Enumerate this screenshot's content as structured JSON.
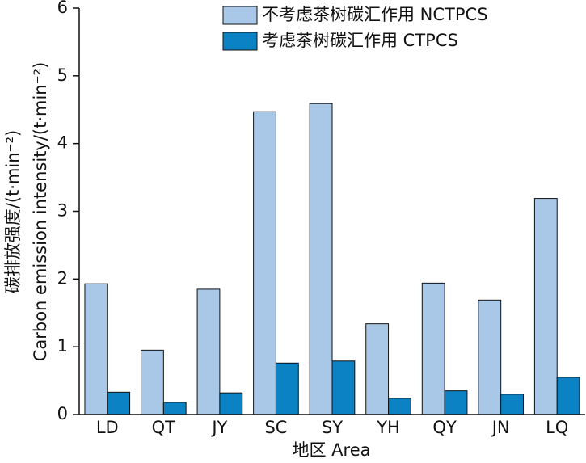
{
  "chart_data": {
    "type": "bar",
    "x_label": "地区 Area",
    "y_label": [
      "碳排放强度/(t·min⁻²)",
      "Carbon emission intensity/(t·min⁻²)"
    ],
    "categories": [
      "LD",
      "QT",
      "JY",
      "SC",
      "SY",
      "YH",
      "QY",
      "JN",
      "LQ"
    ],
    "series": [
      {
        "name": "不考虑茶树碳汇作用 NCTPCS",
        "color": "#a9c8e8",
        "values": [
          1.93,
          0.95,
          1.85,
          4.47,
          4.59,
          1.34,
          1.94,
          1.69,
          3.19
        ]
      },
      {
        "name": "考虑茶树碳汇作用 CTPCS",
        "color": "#0a82c4",
        "values": [
          0.33,
          0.18,
          0.32,
          0.76,
          0.79,
          0.24,
          0.35,
          0.3,
          0.55
        ]
      }
    ],
    "ylim": [
      0,
      6
    ],
    "yticks": [
      0,
      1,
      2,
      3,
      4,
      5,
      6
    ]
  }
}
